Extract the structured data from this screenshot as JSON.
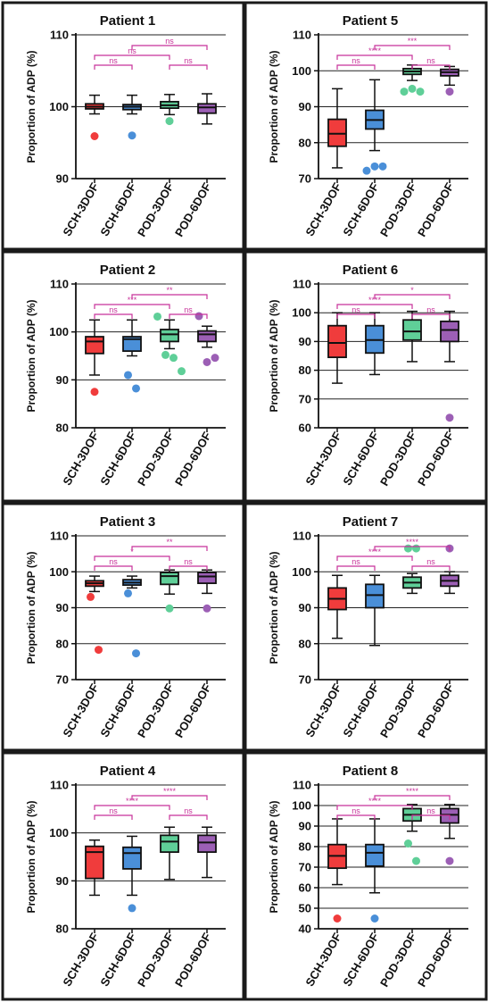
{
  "colors": {
    "SCH-3DOF": "#f03c3c",
    "SCH-6DOF": "#4a8fd8",
    "POD-3DOF": "#5fcf98",
    "POD-6DOF": "#9c5fb5",
    "significance": "#c8329a",
    "border": "#1a1a1a"
  },
  "chart_data": [
    {
      "type": "box",
      "title": "Patient 1",
      "ylabel": "Proportion of ADP (%)",
      "ylim": [
        90,
        110
      ],
      "yticks": [
        90,
        100,
        110
      ],
      "grid": "horizontal",
      "categories": [
        "SCH-3DOF",
        "SCH-6DOF",
        "POD-3DOF",
        "POD-6DOF"
      ],
      "boxes": [
        {
          "min": 99.0,
          "q1": 99.7,
          "median": 100.0,
          "q3": 100.4,
          "max": 101.6,
          "outliers": [
            95.9
          ]
        },
        {
          "min": 99.0,
          "q1": 99.6,
          "median": 100.0,
          "q3": 100.3,
          "max": 101.6,
          "outliers": [
            96.0
          ]
        },
        {
          "min": 98.9,
          "q1": 99.8,
          "median": 100.2,
          "q3": 100.7,
          "max": 101.7,
          "outliers": [
            98.0
          ]
        },
        {
          "min": 97.6,
          "q1": 99.1,
          "median": 99.9,
          "q3": 100.4,
          "max": 101.8,
          "outliers": []
        }
      ],
      "comparisons": [
        {
          "from": 0,
          "to": 1,
          "label": "ns",
          "level": 0
        },
        {
          "from": 2,
          "to": 3,
          "label": "ns",
          "level": 0
        },
        {
          "from": 0,
          "to": 2,
          "label": "ns",
          "level": 1
        },
        {
          "from": 1,
          "to": 3,
          "label": "ns",
          "level": 2
        }
      ]
    },
    {
      "type": "box",
      "title": "Patient 5",
      "ylabel": "Proportion of ADP (%)",
      "ylim": [
        70,
        110
      ],
      "yticks": [
        70,
        80,
        90,
        100,
        110
      ],
      "grid": "horizontal",
      "categories": [
        "SCH-3DOF",
        "SCH-6DOF",
        "POD-3DOF",
        "POD-6DOF"
      ],
      "boxes": [
        {
          "min": 73.0,
          "q1": 79.0,
          "median": 82.5,
          "q3": 86.5,
          "max": 95.0,
          "outliers": []
        },
        {
          "min": 77.8,
          "q1": 83.8,
          "median": 86.3,
          "q3": 89.0,
          "max": 97.5,
          "outliers": [
            72.2,
            73.4,
            73.4
          ]
        },
        {
          "min": 97.3,
          "q1": 99.0,
          "median": 99.8,
          "q3": 100.6,
          "max": 101.6,
          "outliers": [
            94.2,
            95.0,
            94.2
          ]
        },
        {
          "min": 96.0,
          "q1": 98.6,
          "median": 99.6,
          "q3": 100.4,
          "max": 101.2,
          "outliers": [
            94.2
          ]
        }
      ],
      "comparisons": [
        {
          "from": 0,
          "to": 1,
          "label": "ns",
          "level": 0
        },
        {
          "from": 2,
          "to": 3,
          "label": "ns",
          "level": 0
        },
        {
          "from": 0,
          "to": 2,
          "label": "****",
          "level": 1
        },
        {
          "from": 1,
          "to": 3,
          "label": "***",
          "level": 2
        }
      ]
    },
    {
      "type": "box",
      "title": "Patient 2",
      "ylabel": "Proportion of ADP (%)",
      "ylim": [
        80,
        110
      ],
      "yticks": [
        80,
        90,
        100,
        110
      ],
      "grid": "horizontal",
      "categories": [
        "SCH-3DOF",
        "SCH-6DOF",
        "POD-3DOF",
        "POD-6DOF"
      ],
      "boxes": [
        {
          "min": 91.0,
          "q1": 95.5,
          "median": 98.0,
          "q3": 99.0,
          "max": 102.5,
          "outliers": [
            87.5
          ]
        },
        {
          "min": 95.0,
          "q1": 96.0,
          "median": 98.5,
          "q3": 99.0,
          "max": 102.5,
          "outliers": [
            91.0,
            88.2
          ]
        },
        {
          "min": 96.5,
          "q1": 98.0,
          "median": 99.5,
          "q3": 100.5,
          "max": 102.5,
          "outliers": [
            103.2,
            95.2,
            94.6,
            91.8
          ]
        },
        {
          "min": 96.8,
          "q1": 98.0,
          "median": 99.5,
          "q3": 100.2,
          "max": 101.2,
          "outliers": [
            103.3,
            93.7,
            94.6
          ]
        }
      ],
      "comparisons": [
        {
          "from": 0,
          "to": 1,
          "label": "ns",
          "level": 0
        },
        {
          "from": 2,
          "to": 3,
          "label": "ns",
          "level": 0
        },
        {
          "from": 0,
          "to": 2,
          "label": "***",
          "level": 1
        },
        {
          "from": 1,
          "to": 3,
          "label": "**",
          "level": 2
        }
      ]
    },
    {
      "type": "box",
      "title": "Patient 6",
      "ylabel": "Proportion of ADP (%)",
      "ylim": [
        60,
        110
      ],
      "yticks": [
        60,
        70,
        80,
        90,
        100,
        110
      ],
      "grid": "horizontal",
      "categories": [
        "SCH-3DOF",
        "SCH-6DOF",
        "POD-3DOF",
        "POD-6DOF"
      ],
      "boxes": [
        {
          "min": 75.5,
          "q1": 84.5,
          "median": 89.5,
          "q3": 95.5,
          "max": 100.0,
          "outliers": []
        },
        {
          "min": 78.5,
          "q1": 86.0,
          "median": 90.5,
          "q3": 95.5,
          "max": 100.0,
          "outliers": []
        },
        {
          "min": 83.0,
          "q1": 90.5,
          "median": 93.5,
          "q3": 97.5,
          "max": 100.5,
          "outliers": []
        },
        {
          "min": 83.0,
          "q1": 90.0,
          "median": 94.0,
          "q3": 97.0,
          "max": 100.5,
          "outliers": [
            63.5
          ]
        }
      ],
      "comparisons": [
        {
          "from": 0,
          "to": 1,
          "label": "ns",
          "level": 0
        },
        {
          "from": 2,
          "to": 3,
          "label": "ns",
          "level": 0
        },
        {
          "from": 0,
          "to": 2,
          "label": "****",
          "level": 1
        },
        {
          "from": 1,
          "to": 3,
          "label": "*",
          "level": 2
        }
      ]
    },
    {
      "type": "box",
      "title": "Patient 3",
      "ylabel": "Proportion of ADP (%)",
      "ylim": [
        70,
        110
      ],
      "yticks": [
        70,
        80,
        90,
        100,
        110
      ],
      "grid": "horizontal",
      "categories": [
        "SCH-3DOF",
        "SCH-6DOF",
        "POD-3DOF",
        "POD-6DOF"
      ],
      "boxes": [
        {
          "min": 94.5,
          "q1": 96.0,
          "median": 96.8,
          "q3": 97.5,
          "max": 98.8,
          "outliers": [
            93.0,
            78.3
          ]
        },
        {
          "min": 95.5,
          "q1": 96.3,
          "median": 97.0,
          "q3": 97.8,
          "max": 98.8,
          "outliers": [
            94.0,
            77.3
          ]
        },
        {
          "min": 93.8,
          "q1": 96.5,
          "median": 98.8,
          "q3": 99.8,
          "max": 100.5,
          "outliers": [
            89.8
          ]
        },
        {
          "min": 94.0,
          "q1": 96.8,
          "median": 98.7,
          "q3": 99.8,
          "max": 100.5,
          "outliers": [
            89.8
          ]
        }
      ],
      "comparisons": [
        {
          "from": 0,
          "to": 1,
          "label": "ns",
          "level": 0
        },
        {
          "from": 2,
          "to": 3,
          "label": "ns",
          "level": 0
        },
        {
          "from": 0,
          "to": 2,
          "label": "*",
          "level": 1
        },
        {
          "from": 1,
          "to": 3,
          "label": "**",
          "level": 2
        }
      ]
    },
    {
      "type": "box",
      "title": "Patient 7",
      "ylabel": "Proportion of ADP (%)",
      "ylim": [
        70,
        110
      ],
      "yticks": [
        70,
        80,
        90,
        100,
        110
      ],
      "grid": "horizontal",
      "categories": [
        "SCH-3DOF",
        "SCH-6DOF",
        "POD-3DOF",
        "POD-6DOF"
      ],
      "boxes": [
        {
          "min": 81.5,
          "q1": 89.5,
          "median": 92.5,
          "q3": 95.5,
          "max": 99.0,
          "outliers": []
        },
        {
          "min": 79.5,
          "q1": 90.0,
          "median": 93.5,
          "q3": 96.5,
          "max": 99.0,
          "outliers": []
        },
        {
          "min": 94.0,
          "q1": 95.5,
          "median": 97.0,
          "q3": 98.5,
          "max": 99.5,
          "outliers": [
            106.5,
            106.5
          ]
        },
        {
          "min": 94.0,
          "q1": 96.0,
          "median": 97.5,
          "q3": 99.0,
          "max": 100.0,
          "outliers": [
            106.5
          ]
        }
      ],
      "comparisons": [
        {
          "from": 0,
          "to": 1,
          "label": "ns",
          "level": 0
        },
        {
          "from": 2,
          "to": 3,
          "label": "ns",
          "level": 0
        },
        {
          "from": 0,
          "to": 2,
          "label": "****",
          "level": 1
        },
        {
          "from": 1,
          "to": 3,
          "label": "****",
          "level": 2
        }
      ]
    },
    {
      "type": "box",
      "title": "Patient 4",
      "ylabel": "Proportion of ADP (%)",
      "ylim": [
        80,
        110
      ],
      "yticks": [
        80,
        90,
        100,
        110
      ],
      "grid": "horizontal",
      "categories": [
        "SCH-3DOF",
        "SCH-6DOF",
        "POD-3DOF",
        "POD-6DOF"
      ],
      "boxes": [
        {
          "min": 87.0,
          "q1": 90.5,
          "median": 96.0,
          "q3": 97.2,
          "max": 98.5,
          "outliers": []
        },
        {
          "min": 87.0,
          "q1": 92.5,
          "median": 95.8,
          "q3": 97.0,
          "max": 99.3,
          "outliers": [
            84.3
          ]
        },
        {
          "min": 90.3,
          "q1": 96.0,
          "median": 98.2,
          "q3": 99.5,
          "max": 101.2,
          "outliers": []
        },
        {
          "min": 90.7,
          "q1": 96.0,
          "median": 98.0,
          "q3": 99.5,
          "max": 101.2,
          "outliers": []
        }
      ],
      "comparisons": [
        {
          "from": 0,
          "to": 1,
          "label": "ns",
          "level": 0
        },
        {
          "from": 2,
          "to": 3,
          "label": "ns",
          "level": 0
        },
        {
          "from": 0,
          "to": 2,
          "label": "****",
          "level": 1
        },
        {
          "from": 1,
          "to": 3,
          "label": "****",
          "level": 2
        }
      ]
    },
    {
      "type": "box",
      "title": "Patient 8",
      "ylabel": "Proportion of ADP (%)",
      "ylim": [
        40,
        110
      ],
      "yticks": [
        40,
        50,
        60,
        70,
        80,
        90,
        100,
        110
      ],
      "grid": "horizontal",
      "categories": [
        "SCH-3DOF",
        "SCH-6DOF",
        "POD-3DOF",
        "POD-6DOF"
      ],
      "boxes": [
        {
          "min": 61.5,
          "q1": 69.5,
          "median": 75.5,
          "q3": 81.0,
          "max": 93.5,
          "outliers": [
            45.0
          ]
        },
        {
          "min": 57.5,
          "q1": 70.5,
          "median": 77.0,
          "q3": 81.0,
          "max": 93.5,
          "outliers": [
            45.0
          ]
        },
        {
          "min": 87.5,
          "q1": 92.5,
          "median": 95.5,
          "q3": 98.5,
          "max": 100.5,
          "outliers": [
            81.5,
            73.0
          ]
        },
        {
          "min": 84.0,
          "q1": 91.5,
          "median": 95.5,
          "q3": 98.5,
          "max": 100.5,
          "outliers": [
            73.0
          ]
        }
      ],
      "comparisons": [
        {
          "from": 0,
          "to": 1,
          "label": "ns",
          "level": 0
        },
        {
          "from": 2,
          "to": 3,
          "label": "ns",
          "level": 0
        },
        {
          "from": 0,
          "to": 2,
          "label": "****",
          "level": 1
        },
        {
          "from": 1,
          "to": 3,
          "label": "****",
          "level": 2
        }
      ]
    }
  ]
}
